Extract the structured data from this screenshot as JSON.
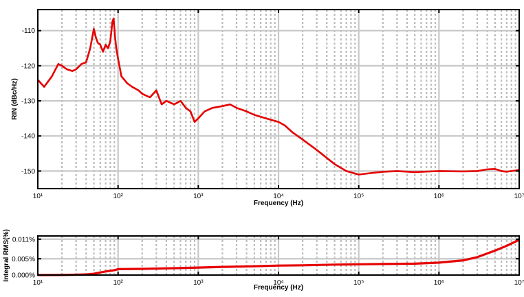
{
  "chart_data": [
    {
      "type": "line",
      "xlabel": "Frequency (Hz)",
      "ylabel": "RIN (dBc/Hz)",
      "xscale": "log",
      "xlim": [
        10,
        10000000
      ],
      "ylim": [
        -155,
        -104
      ],
      "x_ticks": [
        10,
        100,
        1000,
        10000,
        100000,
        1000000,
        10000000
      ],
      "y_ticks": [
        -150,
        -140,
        -130,
        -120,
        -110
      ],
      "y_tick_labels": [
        "-150",
        "-140",
        "-130",
        "-120",
        "-110"
      ],
      "grid": true,
      "line_color": "#e60000",
      "series": [
        {
          "x": [
            10,
            12,
            15,
            18,
            20,
            23,
            27,
            30,
            35,
            40,
            45,
            50,
            53,
            56,
            60,
            65,
            70,
            75,
            80,
            85,
            88,
            92,
            95,
            100,
            110,
            120,
            130,
            150,
            180,
            200,
            250,
            300,
            350,
            400,
            500,
            600,
            700,
            800,
            900,
            1000,
            1200,
            1500,
            2000,
            2500,
            3000,
            4000,
            5000,
            7000,
            10000,
            12000,
            15000,
            20000,
            30000,
            50000,
            70000,
            100000,
            150000,
            200000,
            300000,
            500000,
            1000000,
            2000000,
            3000000,
            4000000,
            5000000,
            6000000,
            7000000,
            8000000,
            10000000
          ],
          "y": [
            -124,
            -126,
            -123,
            -119.5,
            -120,
            -121,
            -121.5,
            -121,
            -119.5,
            -119,
            -115,
            -109.5,
            -112,
            -113.5,
            -114,
            -116,
            -114,
            -115,
            -113,
            -107.5,
            -106.5,
            -112,
            -115,
            -118,
            -123,
            -124,
            -125,
            -126,
            -127,
            -128,
            -129,
            -127,
            -131,
            -130,
            -131,
            -130,
            -132,
            -133,
            -136,
            -135,
            -133,
            -132,
            -131.5,
            -131,
            -132,
            -133,
            -134,
            -135,
            -136,
            -137,
            -139,
            -141,
            -144,
            -148,
            -150,
            -151,
            -150.5,
            -150.2,
            -150,
            -150.3,
            -150,
            -150.1,
            -150,
            -149.5,
            -149.4,
            -150,
            -150.2,
            -150,
            -149.7
          ]
        }
      ]
    },
    {
      "type": "area",
      "xlabel": "Frequency (Hz)",
      "ylabel": "Integral RMS(%)",
      "xscale": "log",
      "xlim": [
        10,
        10000000
      ],
      "ylim": [
        0,
        0.012
      ],
      "x_ticks": [
        10,
        100,
        1000,
        10000,
        100000,
        1000000,
        10000000
      ],
      "y_ticks": [
        0,
        0.005,
        0.011
      ],
      "y_tick_labels": [
        "0.000%",
        "0.005%",
        "0.011%"
      ],
      "grid": true,
      "line_color": "#e60000",
      "series": [
        {
          "x": [
            10,
            20,
            30,
            40,
            50,
            60,
            70,
            80,
            90,
            100,
            200,
            500,
            1000,
            2000,
            5000,
            10000,
            20000,
            50000,
            100000,
            200000,
            500000,
            1000000,
            2000000,
            3000000,
            5000000,
            7000000,
            10000000
          ],
          "y": [
            0,
            3e-05,
            0.0001,
            0.0002,
            0.0004,
            0.0008,
            0.0011,
            0.0013,
            0.0015,
            0.0018,
            0.0019,
            0.0021,
            0.0023,
            0.0025,
            0.0027,
            0.0029,
            0.003,
            0.0032,
            0.0033,
            0.0034,
            0.0035,
            0.0038,
            0.0045,
            0.0055,
            0.0075,
            0.009,
            0.0108
          ]
        }
      ]
    }
  ]
}
